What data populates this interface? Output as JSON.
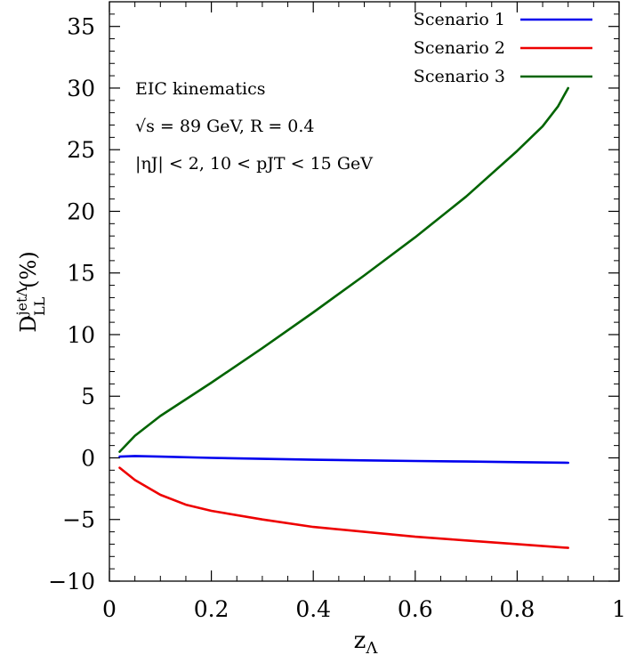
{
  "chart_data": {
    "type": "line",
    "title": "",
    "xlabel": "z_Λ",
    "ylabel": "D_LL^{jetΛ} (%)",
    "xlim": [
      0,
      1
    ],
    "ylim": [
      -10,
      37
    ],
    "x_ticks": [
      0,
      0.2,
      0.4,
      0.6,
      0.8,
      1
    ],
    "x_tick_labels": [
      "0",
      "0.2",
      "0.4",
      "0.6",
      "0.8",
      "1"
    ],
    "y_ticks": [
      -10,
      -5,
      0,
      5,
      10,
      15,
      20,
      25,
      30,
      35
    ],
    "y_tick_labels": [
      "−10",
      "−5",
      "0",
      "5",
      "10",
      "15",
      "20",
      "25",
      "30",
      "35"
    ],
    "grid": false,
    "legend_position": "top-right",
    "annotations": {
      "line1": "EIC kinematics",
      "line2_sqrt": "√s",
      "line2_rest": " = 89 GeV,  R = 0.4",
      "line3": "|ηJ| < 2, 10 < pJT < 15 GeV"
    },
    "series": [
      {
        "name": "Scenario 1",
        "color": "#0000ee",
        "x": [
          0.02,
          0.05,
          0.1,
          0.2,
          0.3,
          0.4,
          0.5,
          0.6,
          0.7,
          0.8,
          0.9
        ],
        "values": [
          0.1,
          0.15,
          0.1,
          0.0,
          -0.08,
          -0.15,
          -0.2,
          -0.25,
          -0.3,
          -0.35,
          -0.4
        ]
      },
      {
        "name": "Scenario 2",
        "color": "#ee0000",
        "x": [
          0.02,
          0.05,
          0.1,
          0.15,
          0.2,
          0.3,
          0.4,
          0.5,
          0.6,
          0.7,
          0.8,
          0.9
        ],
        "values": [
          -0.8,
          -1.8,
          -3.0,
          -3.8,
          -4.3,
          -5.0,
          -5.6,
          -6.0,
          -6.4,
          -6.7,
          -7.0,
          -7.3
        ]
      },
      {
        "name": "Scenario 3",
        "color": "#006400",
        "x": [
          0.02,
          0.05,
          0.1,
          0.2,
          0.3,
          0.4,
          0.5,
          0.6,
          0.7,
          0.8,
          0.85,
          0.88,
          0.9
        ],
        "values": [
          0.5,
          1.8,
          3.4,
          6.1,
          8.9,
          11.8,
          14.8,
          17.9,
          21.2,
          24.9,
          26.9,
          28.5,
          30.0
        ]
      }
    ]
  }
}
